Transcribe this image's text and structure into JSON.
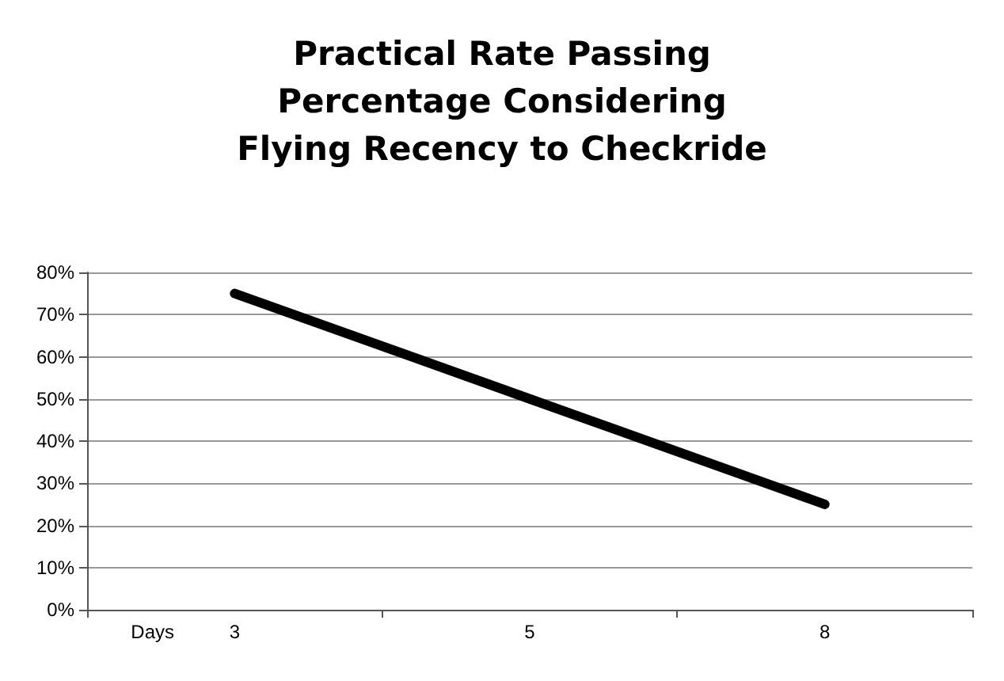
{
  "chart_data": {
    "type": "line",
    "title": "Practical Rate Passing\nPercentage Considering\nFlying Recency to Checkride",
    "xlabel": "Days",
    "categories": [
      "3",
      "5",
      "8"
    ],
    "series": [
      {
        "color": "#000000",
        "values": [
          75,
          50,
          25
        ]
      }
    ],
    "ylim": [
      0,
      80
    ],
    "yticks": [
      {
        "value": 0,
        "label": "0%"
      },
      {
        "value": 10,
        "label": "10%"
      },
      {
        "value": 20,
        "label": "20%"
      },
      {
        "value": 30,
        "label": "30%"
      },
      {
        "value": 40,
        "label": "40%"
      },
      {
        "value": 50,
        "label": "50%"
      },
      {
        "value": 60,
        "label": "60%"
      },
      {
        "value": 70,
        "label": "70%"
      },
      {
        "value": 80,
        "label": "80%"
      }
    ],
    "grid": "y",
    "marker": "none",
    "line_style": "solid"
  }
}
